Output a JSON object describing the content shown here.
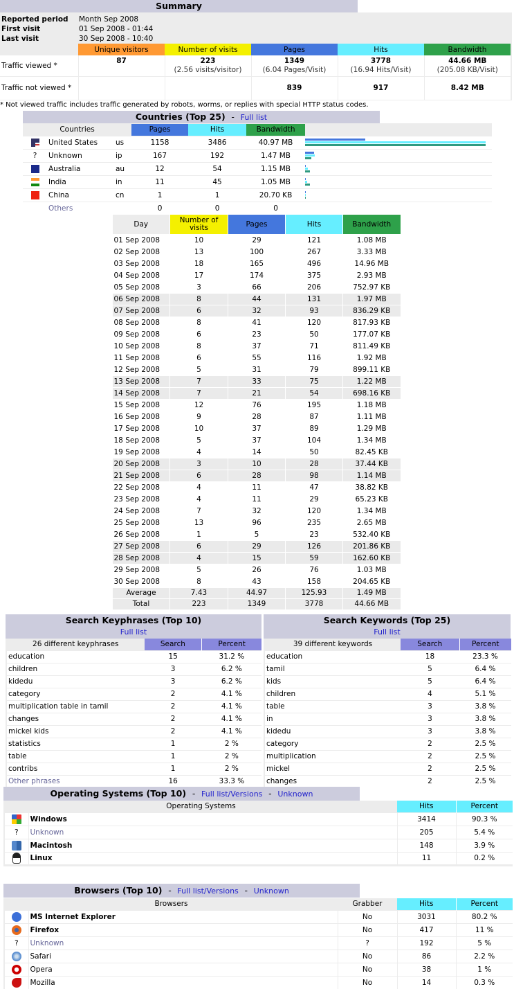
{
  "summary": {
    "title": "Summary",
    "reported_period_label": "Reported period",
    "reported_period": "Month Sep 2008",
    "first_visit_label": "First visit",
    "first_visit": "01 Sep 2008 - 01:44",
    "last_visit_label": "Last visit",
    "last_visit": "30 Sep 2008 - 10:40",
    "headers": [
      "Unique visitors",
      "Number of visits",
      "Pages",
      "Hits",
      "Bandwidth"
    ],
    "viewed_label": "Traffic viewed *",
    "viewed": [
      {
        "v": "87",
        "s": ""
      },
      {
        "v": "223",
        "s": "(2.56 visits/visitor)"
      },
      {
        "v": "1349",
        "s": "(6.04 Pages/Visit)"
      },
      {
        "v": "3778",
        "s": "(16.94 Hits/Visit)"
      },
      {
        "v": "44.66 MB",
        "s": "(205.08 KB/Visit)"
      }
    ],
    "not_viewed_label": "Traffic not viewed *",
    "not_viewed": [
      "",
      "",
      "839",
      "917",
      "8.42 MB"
    ],
    "footnote": "* Not viewed traffic includes traffic generated by robots, worms, or replies with special HTTP status codes."
  },
  "colors": {
    "unique": "#ff9933",
    "visits": "#f4f000",
    "pages": "#4477dd",
    "hits": "#66eeff",
    "bandwidth": "#2ea14a",
    "search": "#8888dd",
    "title_bg": "#ccccdd"
  },
  "countries": {
    "title": "Countries (Top 25)",
    "sep": "-",
    "full_list": "Full list",
    "headers": [
      "Countries",
      "Pages",
      "Hits",
      "Bandwidth"
    ],
    "rows": [
      {
        "flag": "us-flag-icon",
        "name": "United States",
        "code": "us",
        "pages": "1158",
        "hits": "3486",
        "bw": "40.97 MB"
      },
      {
        "flag": "unknown-icon",
        "name": "Unknown",
        "code": "ip",
        "pages": "167",
        "hits": "192",
        "bw": "1.47 MB"
      },
      {
        "flag": "au-flag-icon",
        "name": "Australia",
        "code": "au",
        "pages": "12",
        "hits": "54",
        "bw": "1.15 MB"
      },
      {
        "flag": "in-flag-icon",
        "name": "India",
        "code": "in",
        "pages": "11",
        "hits": "45",
        "bw": "1.05 MB"
      },
      {
        "flag": "cn-flag-icon",
        "name": "China",
        "code": "cn",
        "pages": "1",
        "hits": "1",
        "bw": "20.70 KB"
      }
    ],
    "others": {
      "name": "Others",
      "pages": "0",
      "hits": "0",
      "bw": "0"
    }
  },
  "daily": {
    "headers": [
      "Day",
      "Number of visits",
      "Pages",
      "Hits",
      "Bandwidth"
    ],
    "rows": [
      [
        "01 Sep 2008",
        "10",
        "29",
        "121",
        "1.08 MB",
        false
      ],
      [
        "02 Sep 2008",
        "13",
        "100",
        "267",
        "3.33 MB",
        false
      ],
      [
        "03 Sep 2008",
        "18",
        "165",
        "496",
        "14.96 MB",
        false
      ],
      [
        "04 Sep 2008",
        "17",
        "174",
        "375",
        "2.93 MB",
        false
      ],
      [
        "05 Sep 2008",
        "3",
        "66",
        "206",
        "752.97 KB",
        false
      ],
      [
        "06 Sep 2008",
        "8",
        "44",
        "131",
        "1.97 MB",
        true
      ],
      [
        "07 Sep 2008",
        "6",
        "32",
        "93",
        "836.29 KB",
        true
      ],
      [
        "08 Sep 2008",
        "8",
        "41",
        "120",
        "817.93 KB",
        false
      ],
      [
        "09 Sep 2008",
        "6",
        "23",
        "50",
        "177.07 KB",
        false
      ],
      [
        "10 Sep 2008",
        "8",
        "37",
        "71",
        "811.49 KB",
        false
      ],
      [
        "11 Sep 2008",
        "6",
        "55",
        "116",
        "1.92 MB",
        false
      ],
      [
        "12 Sep 2008",
        "5",
        "31",
        "79",
        "899.11 KB",
        false
      ],
      [
        "13 Sep 2008",
        "7",
        "33",
        "75",
        "1.22 MB",
        true
      ],
      [
        "14 Sep 2008",
        "7",
        "21",
        "54",
        "698.16 KB",
        true
      ],
      [
        "15 Sep 2008",
        "12",
        "76",
        "195",
        "1.18 MB",
        false
      ],
      [
        "16 Sep 2008",
        "9",
        "28",
        "87",
        "1.11 MB",
        false
      ],
      [
        "17 Sep 2008",
        "10",
        "37",
        "89",
        "1.29 MB",
        false
      ],
      [
        "18 Sep 2008",
        "5",
        "37",
        "104",
        "1.34 MB",
        false
      ],
      [
        "19 Sep 2008",
        "4",
        "14",
        "50",
        "82.45 KB",
        false
      ],
      [
        "20 Sep 2008",
        "3",
        "10",
        "28",
        "37.44 KB",
        true
      ],
      [
        "21 Sep 2008",
        "6",
        "28",
        "98",
        "1.14 MB",
        true
      ],
      [
        "22 Sep 2008",
        "4",
        "11",
        "47",
        "38.82 KB",
        false
      ],
      [
        "23 Sep 2008",
        "4",
        "11",
        "29",
        "65.23 KB",
        false
      ],
      [
        "24 Sep 2008",
        "7",
        "32",
        "120",
        "1.34 MB",
        false
      ],
      [
        "25 Sep 2008",
        "13",
        "96",
        "235",
        "2.65 MB",
        false
      ],
      [
        "26 Sep 2008",
        "1",
        "5",
        "23",
        "532.40 KB",
        false
      ],
      [
        "27 Sep 2008",
        "6",
        "29",
        "126",
        "201.86 KB",
        true
      ],
      [
        "28 Sep 2008",
        "4",
        "15",
        "59",
        "162.60 KB",
        true
      ],
      [
        "29 Sep 2008",
        "5",
        "26",
        "76",
        "1.03 MB",
        false
      ],
      [
        "30 Sep 2008",
        "8",
        "43",
        "158",
        "204.65 KB",
        false
      ]
    ],
    "average": [
      "Average",
      "7.43",
      "44.97",
      "125.93",
      "1.49 MB"
    ],
    "total": [
      "Total",
      "223",
      "1349",
      "3778",
      "44.66 MB"
    ]
  },
  "keyphrases": {
    "title": "Search Keyphrases (Top 10)",
    "full_list": "Full list",
    "headers": [
      "26 different keyphrases",
      "Search",
      "Percent"
    ],
    "rows": [
      [
        "education",
        "15",
        "31.2 %"
      ],
      [
        "children",
        "3",
        "6.2 %"
      ],
      [
        "kidedu",
        "3",
        "6.2 %"
      ],
      [
        "category",
        "2",
        "4.1 %"
      ],
      [
        "multiplication table in tamil",
        "2",
        "4.1 %"
      ],
      [
        "changes",
        "2",
        "4.1 %"
      ],
      [
        "mickel kids",
        "2",
        "4.1 %"
      ],
      [
        "statistics",
        "1",
        "2 %"
      ],
      [
        "table",
        "1",
        "2 %"
      ],
      [
        "contribs",
        "1",
        "2 %"
      ]
    ],
    "others": [
      "Other phrases",
      "16",
      "33.3 %"
    ]
  },
  "keywords": {
    "title": "Search Keywords (Top 25)",
    "full_list": "Full list",
    "headers": [
      "39 different keywords",
      "Search",
      "Percent"
    ],
    "rows": [
      [
        "education",
        "18",
        "23.3 %"
      ],
      [
        "tamil",
        "5",
        "6.4 %"
      ],
      [
        "kids",
        "5",
        "6.4 %"
      ],
      [
        "children",
        "4",
        "5.1 %"
      ],
      [
        "table",
        "3",
        "3.8 %"
      ],
      [
        "in",
        "3",
        "3.8 %"
      ],
      [
        "kidedu",
        "3",
        "3.8 %"
      ],
      [
        "category",
        "2",
        "2.5 %"
      ],
      [
        "multiplication",
        "2",
        "2.5 %"
      ],
      [
        "mickel",
        "2",
        "2.5 %"
      ],
      [
        "changes",
        "2",
        "2.5 %"
      ]
    ]
  },
  "os": {
    "title": "Operating Systems (Top 10)",
    "sep": "-",
    "full_list": "Full list/Versions",
    "unknown": "Unknown",
    "headers": [
      "Operating Systems",
      "Hits",
      "Percent"
    ],
    "rows": [
      {
        "icon": "windows-icon",
        "name": "Windows",
        "hits": "3414",
        "pct": "90.3 %",
        "bold": true
      },
      {
        "icon": "unknown-icon",
        "name": "Unknown",
        "hits": "205",
        "pct": "5.4 %",
        "bold": false,
        "grey": true
      },
      {
        "icon": "macintosh-icon",
        "name": "Macintosh",
        "hits": "148",
        "pct": "3.9 %",
        "bold": true
      },
      {
        "icon": "linux-icon",
        "name": "Linux",
        "hits": "11",
        "pct": "0.2 %",
        "bold": true
      }
    ]
  },
  "browsers": {
    "title": "Browsers (Top 10)",
    "sep": "-",
    "full_list": "Full list/Versions",
    "unknown": "Unknown",
    "headers": [
      "Browsers",
      "Grabber",
      "Hits",
      "Percent"
    ],
    "rows": [
      {
        "icon": "internet-explorer-icon",
        "name": "MS Internet Explorer",
        "grabber": "No",
        "hits": "3031",
        "pct": "80.2 %",
        "bold": true
      },
      {
        "icon": "firefox-icon",
        "name": "Firefox",
        "grabber": "No",
        "hits": "417",
        "pct": "11 %",
        "bold": true
      },
      {
        "icon": "unknown-icon",
        "name": "Unknown",
        "grabber": "?",
        "hits": "192",
        "pct": "5 %",
        "bold": false,
        "grey": true
      },
      {
        "icon": "safari-icon",
        "name": "Safari",
        "grabber": "No",
        "hits": "86",
        "pct": "2.2 %",
        "bold": false
      },
      {
        "icon": "opera-icon",
        "name": "Opera",
        "grabber": "No",
        "hits": "38",
        "pct": "1 %",
        "bold": false
      },
      {
        "icon": "mozilla-icon",
        "name": "Mozilla",
        "grabber": "No",
        "hits": "14",
        "pct": "0.3 %",
        "bold": false
      }
    ]
  }
}
